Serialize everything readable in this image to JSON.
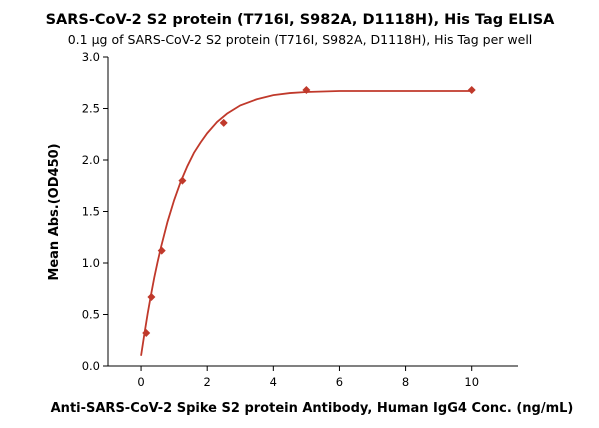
{
  "chart_data": {
    "type": "scatter",
    "title": "SARS-CoV-2 S2 protein (T716I, S982A, D1118H), His Tag ELISA",
    "subtitle": "0.1 µg of SARS-CoV-2 S2 protein (T716I, S982A, D1118H), His Tag per well",
    "xlabel": "Anti-SARS-CoV-2 Spike S2 protein Antibody, Human IgG4 Conc. (ng/mL)",
    "ylabel": "Mean Abs.(OD450)",
    "xlim": [
      -1,
      11.4
    ],
    "ylim": [
      0,
      3.0
    ],
    "x_ticks": [
      0,
      2,
      4,
      6,
      8,
      10
    ],
    "y_ticks": [
      0.0,
      0.5,
      1.0,
      1.5,
      2.0,
      2.5,
      3.0
    ],
    "x_tick_labels": [
      "0",
      "2",
      "4",
      "6",
      "8",
      "10"
    ],
    "y_tick_labels": [
      "0.0",
      "0.5",
      "1.0",
      "1.5",
      "2.0",
      "2.5",
      "3.0"
    ],
    "grid": false,
    "marker": "diamond",
    "color": "#c0392b",
    "series": [
      {
        "x": [
          0.156,
          0.313,
          0.625,
          1.25,
          2.5,
          5,
          10
        ],
        "y": [
          0.32,
          0.67,
          1.12,
          1.8,
          2.36,
          2.68,
          2.68
        ],
        "fit": "sigmoidal"
      }
    ],
    "fit_curve": {
      "x": [
        0,
        0.1,
        0.2,
        0.3,
        0.4,
        0.5,
        0.6,
        0.8,
        1.0,
        1.2,
        1.4,
        1.6,
        1.8,
        2.0,
        2.3,
        2.6,
        3.0,
        3.5,
        4.0,
        4.5,
        5.0,
        6.0,
        7.0,
        8.0,
        9.0,
        10.0
      ],
      "y": [
        0.1,
        0.31,
        0.51,
        0.69,
        0.86,
        1.01,
        1.15,
        1.4,
        1.61,
        1.79,
        1.94,
        2.07,
        2.17,
        2.26,
        2.37,
        2.45,
        2.53,
        2.59,
        2.63,
        2.65,
        2.66,
        2.67,
        2.67,
        2.67,
        2.67,
        2.67
      ]
    }
  }
}
